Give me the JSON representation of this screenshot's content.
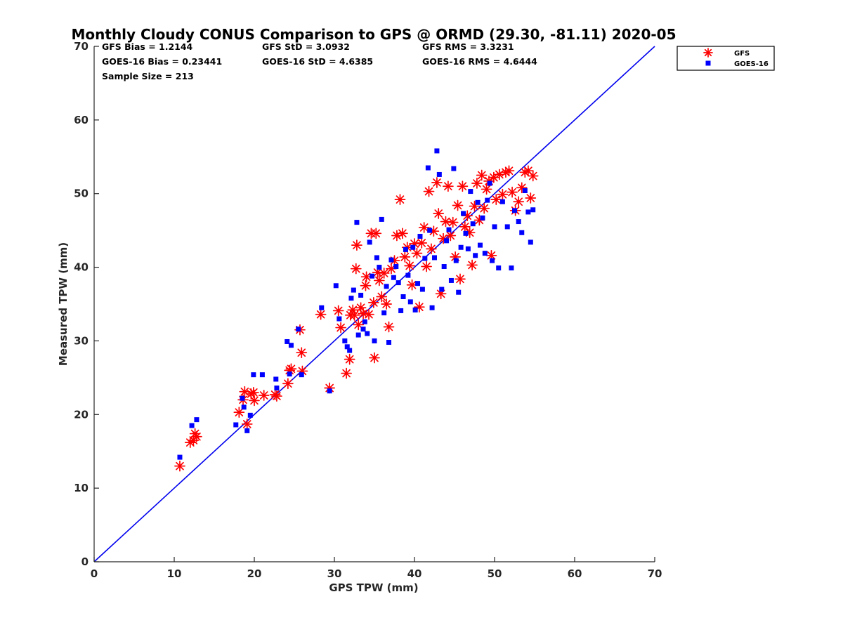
{
  "chart_data": {
    "type": "scatter",
    "title": "Monthly Cloudy CONUS Comparison to GPS @ ORMD (29.30, -81.11) 2020-05",
    "xlabel": "GPS TPW (mm)",
    "ylabel": "Measured TPW (mm)",
    "xlim": [
      0,
      70
    ],
    "ylim": [
      0,
      70
    ],
    "xticks": [
      "0",
      "10",
      "20",
      "30",
      "40",
      "50",
      "60",
      "70"
    ],
    "yticks": [
      "0",
      "10",
      "20",
      "30",
      "40",
      "50",
      "60",
      "70"
    ],
    "grid": false,
    "legend_position": "outside top-right",
    "stats": [
      [
        "GFS Bias = 1.2144",
        "GFS StD = 3.0932",
        "GFS RMS = 3.3231"
      ],
      [
        "GOES-16 Bias = 0.23441",
        "GOES-16 StD = 4.6385",
        "GOES-16 RMS = 4.6444"
      ],
      [
        "Sample Size = 213"
      ]
    ],
    "reference_line": {
      "name": "1:1",
      "x": [
        0,
        70
      ],
      "y": [
        0,
        70
      ],
      "color": "#0000ee"
    },
    "series": [
      {
        "name": "GFS",
        "marker": "asterisk",
        "color": "#ff0000",
        "points": [
          [
            10.7,
            13.0
          ],
          [
            12.0,
            16.2
          ],
          [
            12.4,
            16.5
          ],
          [
            12.6,
            17.4
          ],
          [
            12.8,
            17.0
          ],
          [
            18.1,
            20.3
          ],
          [
            18.6,
            22.0
          ],
          [
            18.8,
            23.1
          ],
          [
            19.1,
            18.7
          ],
          [
            19.6,
            22.8
          ],
          [
            19.9,
            23.0
          ],
          [
            20.0,
            21.9
          ],
          [
            21.2,
            22.6
          ],
          [
            22.6,
            22.7
          ],
          [
            22.8,
            22.5
          ],
          [
            24.2,
            24.2
          ],
          [
            24.4,
            26.0
          ],
          [
            24.6,
            26.2
          ],
          [
            25.7,
            31.5
          ],
          [
            25.9,
            28.4
          ],
          [
            26.0,
            25.9
          ],
          [
            28.3,
            33.6
          ],
          [
            29.4,
            23.6
          ],
          [
            30.5,
            34.1
          ],
          [
            30.8,
            31.8
          ],
          [
            31.5,
            25.6
          ],
          [
            31.9,
            27.5
          ],
          [
            32.0,
            33.5
          ],
          [
            32.3,
            34.2
          ],
          [
            32.5,
            33.5
          ],
          [
            32.7,
            39.8
          ],
          [
            32.8,
            43.0
          ],
          [
            33.0,
            32.2
          ],
          [
            33.3,
            34.5
          ],
          [
            33.6,
            33.7
          ],
          [
            33.9,
            37.5
          ],
          [
            34.0,
            38.7
          ],
          [
            34.3,
            33.6
          ],
          [
            34.6,
            44.6
          ],
          [
            34.9,
            35.2
          ],
          [
            35.0,
            27.7
          ],
          [
            35.2,
            44.6
          ],
          [
            35.4,
            39.3
          ],
          [
            35.6,
            38.2
          ],
          [
            35.9,
            36.0
          ],
          [
            36.2,
            39.2
          ],
          [
            36.5,
            35.0
          ],
          [
            36.8,
            31.9
          ],
          [
            37.1,
            39.8
          ],
          [
            37.5,
            40.9
          ],
          [
            37.8,
            44.3
          ],
          [
            38.2,
            49.2
          ],
          [
            38.5,
            44.6
          ],
          [
            38.8,
            41.4
          ],
          [
            39.1,
            42.7
          ],
          [
            39.4,
            40.2
          ],
          [
            39.7,
            37.6
          ],
          [
            40.0,
            43.2
          ],
          [
            40.3,
            41.9
          ],
          [
            40.6,
            34.6
          ],
          [
            40.9,
            43.3
          ],
          [
            41.2,
            45.4
          ],
          [
            41.5,
            40.1
          ],
          [
            41.8,
            50.3
          ],
          [
            42.1,
            42.5
          ],
          [
            42.4,
            44.9
          ],
          [
            42.8,
            51.5
          ],
          [
            43.0,
            47.3
          ],
          [
            43.3,
            36.4
          ],
          [
            43.6,
            43.9
          ],
          [
            43.9,
            46.2
          ],
          [
            44.2,
            51.0
          ],
          [
            44.5,
            44.3
          ],
          [
            44.8,
            46.1
          ],
          [
            45.1,
            41.4
          ],
          [
            45.4,
            48.4
          ],
          [
            45.7,
            38.4
          ],
          [
            46.0,
            51.0
          ],
          [
            46.3,
            45.5
          ],
          [
            46.6,
            47.0
          ],
          [
            46.9,
            44.7
          ],
          [
            47.2,
            40.3
          ],
          [
            47.5,
            48.3
          ],
          [
            47.8,
            51.4
          ],
          [
            48.1,
            46.4
          ],
          [
            48.4,
            52.5
          ],
          [
            48.7,
            48.0
          ],
          [
            49.0,
            50.6
          ],
          [
            49.3,
            51.7
          ],
          [
            49.6,
            41.6
          ],
          [
            49.9,
            52.2
          ],
          [
            50.2,
            49.2
          ],
          [
            50.6,
            52.6
          ],
          [
            51.0,
            49.9
          ],
          [
            51.4,
            52.9
          ],
          [
            51.8,
            53.1
          ],
          [
            52.2,
            50.2
          ],
          [
            52.6,
            47.7
          ],
          [
            53.0,
            48.9
          ],
          [
            53.4,
            50.8
          ],
          [
            53.8,
            52.9
          ],
          [
            54.2,
            53.1
          ],
          [
            54.5,
            49.4
          ],
          [
            54.8,
            52.4
          ]
        ]
      },
      {
        "name": "GOES-16",
        "marker": "square",
        "color": "#0000ff",
        "points": [
          [
            10.7,
            14.2
          ],
          [
            12.2,
            18.5
          ],
          [
            12.8,
            19.3
          ],
          [
            17.7,
            18.6
          ],
          [
            18.5,
            22.2
          ],
          [
            18.7,
            21.0
          ],
          [
            19.1,
            17.8
          ],
          [
            19.5,
            19.9
          ],
          [
            19.9,
            25.4
          ],
          [
            21.0,
            25.4
          ],
          [
            22.7,
            24.8
          ],
          [
            22.8,
            23.6
          ],
          [
            24.1,
            29.9
          ],
          [
            24.6,
            29.4
          ],
          [
            24.4,
            25.5
          ],
          [
            25.5,
            31.6
          ],
          [
            25.9,
            25.4
          ],
          [
            28.4,
            34.5
          ],
          [
            29.4,
            23.2
          ],
          [
            30.2,
            37.5
          ],
          [
            30.6,
            33.0
          ],
          [
            31.3,
            30.0
          ],
          [
            31.6,
            29.2
          ],
          [
            31.9,
            28.7
          ],
          [
            32.1,
            35.8
          ],
          [
            32.4,
            36.9
          ],
          [
            32.8,
            46.1
          ],
          [
            33.0,
            30.8
          ],
          [
            33.3,
            36.2
          ],
          [
            33.6,
            31.6
          ],
          [
            33.8,
            32.6
          ],
          [
            34.1,
            31.0
          ],
          [
            34.4,
            43.4
          ],
          [
            34.7,
            38.8
          ],
          [
            35.0,
            30.0
          ],
          [
            35.3,
            41.3
          ],
          [
            35.6,
            40.0
          ],
          [
            35.9,
            46.5
          ],
          [
            36.2,
            33.8
          ],
          [
            36.5,
            37.4
          ],
          [
            36.8,
            29.8
          ],
          [
            37.1,
            41.0
          ],
          [
            37.4,
            38.6
          ],
          [
            37.7,
            40.1
          ],
          [
            38.0,
            37.9
          ],
          [
            38.3,
            34.1
          ],
          [
            38.6,
            36.0
          ],
          [
            38.9,
            42.4
          ],
          [
            39.2,
            38.9
          ],
          [
            39.5,
            35.3
          ],
          [
            39.8,
            42.7
          ],
          [
            40.1,
            34.2
          ],
          [
            40.4,
            37.8
          ],
          [
            40.7,
            44.2
          ],
          [
            41.0,
            37.0
          ],
          [
            41.3,
            41.2
          ],
          [
            41.7,
            53.5
          ],
          [
            41.9,
            45.0
          ],
          [
            42.2,
            34.5
          ],
          [
            42.5,
            41.3
          ],
          [
            42.8,
            55.8
          ],
          [
            43.1,
            52.6
          ],
          [
            43.4,
            37.0
          ],
          [
            43.7,
            40.1
          ],
          [
            44.0,
            43.6
          ],
          [
            44.3,
            45.1
          ],
          [
            44.6,
            38.2
          ],
          [
            44.9,
            53.4
          ],
          [
            45.2,
            40.9
          ],
          [
            45.5,
            36.6
          ],
          [
            45.8,
            42.7
          ],
          [
            46.1,
            47.3
          ],
          [
            46.4,
            44.6
          ],
          [
            46.7,
            42.5
          ],
          [
            47.0,
            50.3
          ],
          [
            47.3,
            45.9
          ],
          [
            47.6,
            41.6
          ],
          [
            47.9,
            48.8
          ],
          [
            48.2,
            43.0
          ],
          [
            48.5,
            46.7
          ],
          [
            48.8,
            41.9
          ],
          [
            49.1,
            49.1
          ],
          [
            49.4,
            51.4
          ],
          [
            49.7,
            40.9
          ],
          [
            50.0,
            45.5
          ],
          [
            50.5,
            39.9
          ],
          [
            51.0,
            48.9
          ],
          [
            51.6,
            45.5
          ],
          [
            52.1,
            39.9
          ],
          [
            52.5,
            47.7
          ],
          [
            53.0,
            46.2
          ],
          [
            53.4,
            44.7
          ],
          [
            53.8,
            50.4
          ],
          [
            54.2,
            47.5
          ],
          [
            54.5,
            43.4
          ],
          [
            54.8,
            47.8
          ]
        ]
      }
    ]
  }
}
